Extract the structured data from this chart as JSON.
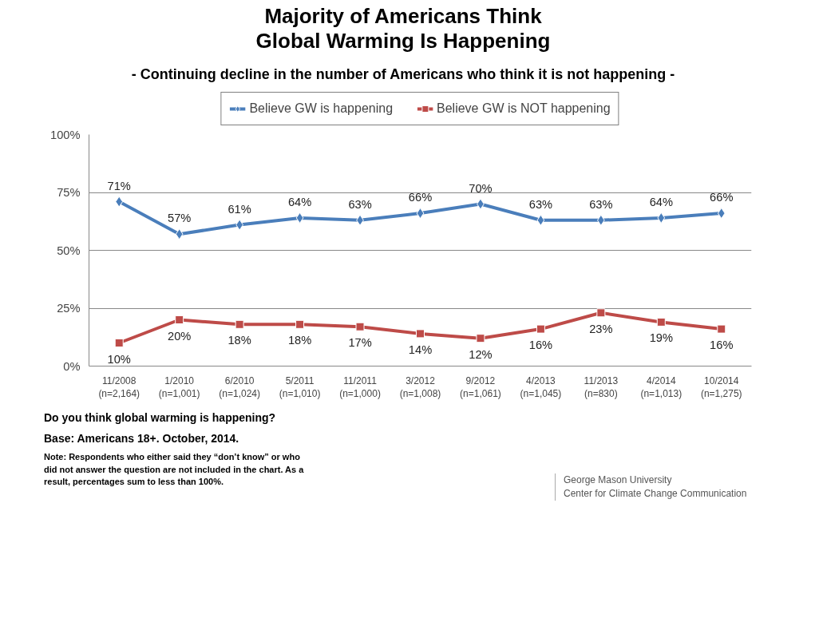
{
  "chart_data": {
    "type": "line",
    "title": "Majority of Americans Think\nGlobal Warming Is Happening",
    "subtitle": "- Continuing decline in the number of Americans who think it is not happening -",
    "categories": [
      "11/2008\n(n=2,164)",
      "1/2010\n(n=1,001)",
      "6/2010\n(n=1,024)",
      "5/2011\n(n=1,010)",
      "11/2011\n(n=1,000)",
      "3/2012\n(n=1,008)",
      "9/2012\n(n=1,061)",
      "4/2013\n(n=1,045)",
      "11/2013\n(n=830)",
      "4/2014\n(n=1,013)",
      "10/2014\n(n=1,275)"
    ],
    "series": [
      {
        "name": "Believe GW is happening",
        "color": "#4a7ebb",
        "marker": "diamond",
        "values": [
          71,
          57,
          61,
          64,
          63,
          66,
          70,
          63,
          63,
          64,
          66
        ],
        "value_labels": [
          "71%",
          "57%",
          "61%",
          "64%",
          "63%",
          "66%",
          "70%",
          "63%",
          "63%",
          "64%",
          "66%"
        ]
      },
      {
        "name": "Believe GW is NOT happening",
        "color": "#be4b48",
        "marker": "square",
        "values": [
          10,
          20,
          18,
          18,
          17,
          14,
          12,
          16,
          23,
          19,
          16
        ],
        "value_labels": [
          "10%",
          "20%",
          "18%",
          "18%",
          "17%",
          "14%",
          "12%",
          "16%",
          "23%",
          "19%",
          "16%"
        ]
      }
    ],
    "ylim": [
      0,
      100
    ],
    "yticks": [
      {
        "value": 0,
        "label": "0%"
      },
      {
        "value": 25,
        "label": "25%"
      },
      {
        "value": 50,
        "label": "50%"
      },
      {
        "value": 75,
        "label": "75%"
      },
      {
        "value": 100,
        "label": "100%"
      }
    ],
    "grid": "y",
    "legend": "top",
    "line_style": "solid",
    "annotations": [
      "Do you think global warming is happening?",
      "Base: Americans 18+. October, 2014.",
      "Note: Respondents who either said they “don’t know” or who did not answer the question are not included in the chart. As a result, percentages sum to less than 100%.",
      "George Mason University\nCenter for Climate Change Communication"
    ]
  }
}
